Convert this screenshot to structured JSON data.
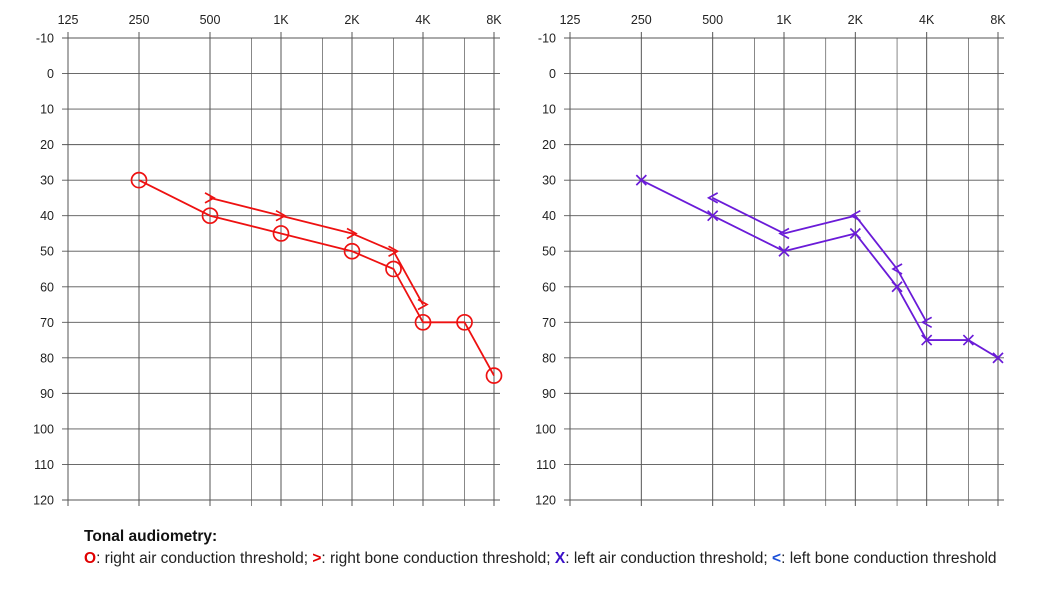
{
  "colors": {
    "right": "#ee1111",
    "left": "#6a1bd8",
    "grid": "#555555",
    "text": "#222222"
  },
  "chart_data": [
    {
      "type": "line",
      "ear": "right",
      "x_ticks": [
        "125",
        "250",
        "500",
        "1K",
        "2K",
        "4K",
        "8K"
      ],
      "x_values_hz": [
        125,
        250,
        500,
        1000,
        2000,
        4000,
        8000
      ],
      "x_scale": "log2",
      "y_ticks": [
        -10,
        0,
        10,
        20,
        30,
        40,
        50,
        60,
        70,
        80,
        90,
        100,
        110,
        120
      ],
      "ylim": [
        -10,
        120
      ],
      "y_inverted": true,
      "grid": true,
      "series": [
        {
          "symbol": "O",
          "color": "#ee1111",
          "points": [
            [
              250,
              30
            ],
            [
              500,
              40
            ],
            [
              1000,
              45
            ],
            [
              2000,
              50
            ],
            [
              3000,
              55
            ],
            [
              4000,
              70
            ],
            [
              6000,
              70
            ],
            [
              8000,
              85
            ]
          ]
        },
        {
          "symbol": ">",
          "color": "#ee1111",
          "points": [
            [
              500,
              35
            ],
            [
              1000,
              40
            ],
            [
              2000,
              45
            ],
            [
              3000,
              50
            ],
            [
              4000,
              65
            ]
          ]
        }
      ]
    },
    {
      "type": "line",
      "ear": "left",
      "x_ticks": [
        "125",
        "250",
        "500",
        "1K",
        "2K",
        "4K",
        "8K"
      ],
      "x_values_hz": [
        125,
        250,
        500,
        1000,
        2000,
        4000,
        8000
      ],
      "x_scale": "log2",
      "y_ticks": [
        -10,
        0,
        10,
        20,
        30,
        40,
        50,
        60,
        70,
        80,
        90,
        100,
        110,
        120
      ],
      "ylim": [
        -10,
        120
      ],
      "y_inverted": true,
      "grid": true,
      "series": [
        {
          "symbol": "X",
          "color": "#6a1bd8",
          "points": [
            [
              250,
              30
            ],
            [
              500,
              40
            ],
            [
              1000,
              50
            ],
            [
              2000,
              45
            ],
            [
              3000,
              60
            ],
            [
              4000,
              75
            ],
            [
              6000,
              75
            ],
            [
              8000,
              80
            ]
          ]
        },
        {
          "symbol": "<",
          "color": "#6a1bd8",
          "points": [
            [
              500,
              35
            ],
            [
              1000,
              45
            ],
            [
              2000,
              40
            ],
            [
              3000,
              55
            ],
            [
              4000,
              70
            ]
          ]
        }
      ]
    }
  ],
  "caption": {
    "title": "Tonal audiometry:",
    "ra_symbol": "O",
    "ra_text": ": right air conduction threshold; ",
    "rb_symbol": ">",
    "rb_text": ": right bone conduction threshold; ",
    "la_symbol": "X",
    "la_text": ": left air conduction threshold; ",
    "lb_symbol": "<",
    "lb_text": ": left bone conduction threshold"
  }
}
